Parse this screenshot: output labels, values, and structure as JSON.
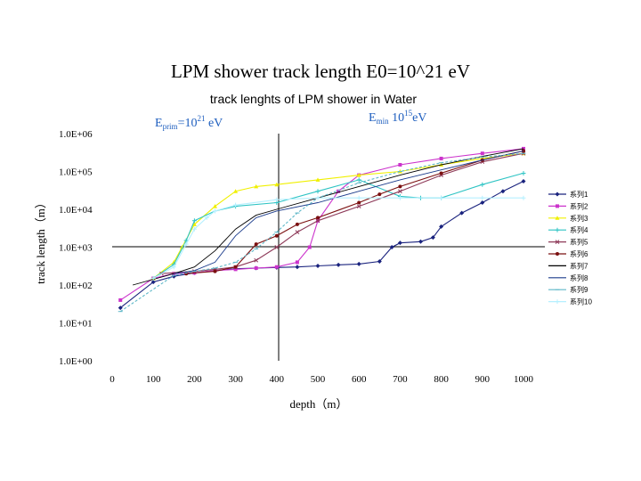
{
  "slide_title": "LPM shower track length E0=10^21 eV",
  "annotations": {
    "eprim_base": "E",
    "eprim_sub": "prim",
    "eprim_eq": "=10",
    "eprim_exp": "21",
    "eprim_unit": " eV",
    "emin_base": "E",
    "emin_sub": "min",
    "emin_eq": " 10",
    "emin_exp": "15",
    "emin_unit": "eV",
    "color": "#1f5fbf"
  },
  "chart_data": {
    "type": "line",
    "title": "track lenghts of LPM shower in Water",
    "xlabel": "depth（m）",
    "ylabel": "track length（m）",
    "xlim": [
      0,
      1000
    ],
    "ylim": [
      1,
      1000000
    ],
    "y_scale": "log",
    "x_ticks": [
      "0",
      "100",
      "200",
      "300",
      "400",
      "500",
      "600",
      "700",
      "800",
      "900",
      "1000"
    ],
    "y_ticks": [
      "1.0E+00",
      "1.0E+01",
      "1.0E+02",
      "1.0E+03",
      "1.0E+04",
      "1.0E+05",
      "1.0E+06"
    ],
    "crosshair": {
      "x": 400,
      "y": 1000
    },
    "legend_position": "right",
    "series": [
      {
        "name": "系列1",
        "color": "#1a237e",
        "marker": "diamond",
        "x": [
          20,
          100,
          150,
          200,
          250,
          300,
          350,
          400,
          450,
          500,
          550,
          600,
          650,
          680,
          700,
          750,
          780,
          800,
          850,
          900,
          950,
          1000
        ],
        "y": [
          25,
          120,
          170,
          210,
          240,
          270,
          280,
          290,
          300,
          320,
          340,
          360,
          420,
          1000,
          1300,
          1400,
          1800,
          3500,
          8000,
          15000,
          30000,
          55000
        ]
      },
      {
        "name": "系列2",
        "color": "#cc33cc",
        "marker": "square",
        "x": [
          20,
          100,
          150,
          200,
          250,
          300,
          350,
          400,
          450,
          480,
          500,
          550,
          600,
          700,
          800,
          900,
          1000
        ],
        "y": [
          40,
          150,
          200,
          210,
          240,
          260,
          280,
          300,
          400,
          1000,
          5000,
          30000,
          80000,
          150000,
          220000,
          300000,
          400000
        ]
      },
      {
        "name": "系列3",
        "color": "#f0f000",
        "marker": "triangle",
        "x": [
          100,
          150,
          170,
          200,
          250,
          300,
          350,
          400,
          500,
          600,
          700,
          800,
          900,
          1000
        ],
        "y": [
          150,
          400,
          1000,
          4000,
          12000,
          30000,
          40000,
          45000,
          60000,
          80000,
          100000,
          150000,
          220000,
          300000
        ]
      },
      {
        "name": "系列4",
        "color": "#2ec4c4",
        "marker": "cross",
        "x": [
          100,
          150,
          180,
          200,
          250,
          300,
          400,
          500,
          600,
          700,
          750,
          800,
          900,
          1000
        ],
        "y": [
          150,
          350,
          1500,
          5000,
          9000,
          12000,
          15000,
          30000,
          60000,
          22000,
          20000,
          20000,
          45000,
          90000
        ]
      },
      {
        "name": "系列5",
        "color": "#8e3a59",
        "marker": "x",
        "x": [
          120,
          200,
          250,
          300,
          350,
          400,
          450,
          500,
          600,
          700,
          800,
          900,
          1000
        ],
        "y": [
          200,
          230,
          260,
          300,
          450,
          1000,
          2500,
          5000,
          12000,
          30000,
          80000,
          180000,
          300000
        ]
      },
      {
        "name": "系列6",
        "color": "#7b1010",
        "marker": "circle",
        "x": [
          180,
          250,
          300,
          350,
          400,
          450,
          500,
          600,
          650,
          700,
          800,
          900,
          1000
        ],
        "y": [
          200,
          230,
          300,
          1200,
          2000,
          4000,
          6000,
          15000,
          25000,
          40000,
          90000,
          200000,
          350000
        ]
      },
      {
        "name": "系列7",
        "color": "#000000",
        "marker": "none",
        "x": [
          50,
          150,
          200,
          250,
          300,
          350,
          400,
          500,
          600,
          700,
          800,
          900,
          1000
        ],
        "y": [
          100,
          200,
          300,
          800,
          3000,
          7000,
          10000,
          20000,
          40000,
          80000,
          150000,
          250000,
          400000
        ]
      },
      {
        "name": "系列8",
        "color": "#1c3c8c",
        "marker": "none",
        "x": [
          150,
          200,
          250,
          300,
          350,
          400,
          500,
          600,
          700,
          800,
          900,
          1000
        ],
        "y": [
          200,
          240,
          400,
          2000,
          6000,
          9000,
          15000,
          30000,
          60000,
          110000,
          200000,
          350000
        ]
      },
      {
        "name": "系列9",
        "color": "#5fb8c8",
        "marker": "dash",
        "x": [
          20,
          150,
          200,
          250,
          300,
          350,
          400,
          450,
          500,
          600,
          700,
          800,
          900,
          1000
        ],
        "y": [
          20,
          180,
          230,
          280,
          400,
          900,
          2500,
          8000,
          20000,
          50000,
          100000,
          170000,
          240000,
          300000
        ]
      },
      {
        "name": "系列10",
        "color": "#b5f0ff",
        "marker": "cross",
        "x": [
          100,
          150,
          180,
          200,
          230,
          250,
          300,
          400,
          500,
          600,
          700,
          800,
          900,
          1000
        ],
        "y": [
          150,
          300,
          1200,
          3000,
          6000,
          9000,
          13000,
          18000,
          20000,
          20000,
          20000,
          20000,
          20000,
          20000
        ]
      }
    ]
  }
}
